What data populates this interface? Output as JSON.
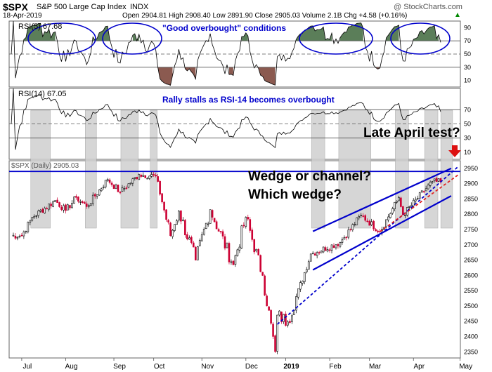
{
  "header": {
    "symbol": "$SPX",
    "name": "S&P 500 Large Cap Index",
    "exchange": "INDX",
    "date": "18-Apr-2019",
    "watermark": "@ StockCharts.com",
    "quote": "Open 2904.81  High 2908.40  Low 2891.90  Close 2905.03  Volume 2.1B  Chg +4.58 (+0.16%)",
    "up_arrow": "▲"
  },
  "chart_data": [
    {
      "type": "line",
      "panel": "RSI(5)",
      "legend": "RSI(5) 67.68",
      "annotation": "\"Good overbought\" conditions",
      "ylim": [
        0,
        100
      ],
      "y_ticks": [
        10,
        30,
        50,
        70,
        90
      ],
      "reference_lines": [
        30,
        50,
        70
      ],
      "last_value": 67.68,
      "highlighted_zones": [
        "Jul–Aug",
        "Aug–Sep",
        "Jan–Mar",
        "Apr"
      ],
      "fill_above": 70,
      "fill_below": 30
    },
    {
      "type": "line",
      "panel": "RSI(14)",
      "legend": "RSI(14) 67.05",
      "annotation": "Rally stalls as RSI-14 becomes overbought",
      "ylim": [
        0,
        100
      ],
      "y_ticks": [
        10,
        30,
        50,
        70
      ],
      "reference_lines": [
        30,
        50,
        70
      ],
      "last_value": 67.05
    },
    {
      "type": "candlestick",
      "panel": "$SPX (Daily)",
      "legend": "$SPX (Daily) 2905.03",
      "last_close": 2905.03,
      "ylim": [
        2330,
        2975
      ],
      "y_ticks": [
        2350,
        2400,
        2450,
        2500,
        2550,
        2600,
        2650,
        2700,
        2750,
        2800,
        2850,
        2900,
        2950
      ],
      "x_labels": [
        "Jul",
        "Aug",
        "Sep",
        "Oct",
        "Nov",
        "Dec",
        "2019",
        "Feb",
        "Mar",
        "Apr",
        "May"
      ],
      "anchors": [
        [
          "2018-07-02",
          2730
        ],
        [
          "2018-07-10",
          2790
        ],
        [
          "2018-07-25",
          2845
        ],
        [
          "2018-08-01",
          2812
        ],
        [
          "2018-08-08",
          2855
        ],
        [
          "2018-08-15",
          2825
        ],
        [
          "2018-08-29",
          2914
        ],
        [
          "2018-09-07",
          2872
        ],
        [
          "2018-09-20",
          2930
        ],
        [
          "2018-10-02",
          2925
        ],
        [
          "2018-10-11",
          2730
        ],
        [
          "2018-10-17",
          2810
        ],
        [
          "2018-10-29",
          2650
        ],
        [
          "2018-11-07",
          2815
        ],
        [
          "2018-11-23",
          2635
        ],
        [
          "2018-12-03",
          2790
        ],
        [
          "2018-12-14",
          2600
        ],
        [
          "2018-12-24",
          2351
        ],
        [
          "2018-12-26",
          2470
        ],
        [
          "2019-01-03",
          2448
        ],
        [
          "2019-01-18",
          2670
        ],
        [
          "2019-02-08",
          2708
        ],
        [
          "2019-02-25",
          2797
        ],
        [
          "2019-03-08",
          2743
        ],
        [
          "2019-03-21",
          2855
        ],
        [
          "2019-03-25",
          2798
        ],
        [
          "2019-04-12",
          2907
        ],
        [
          "2019-04-18",
          2905
        ]
      ],
      "horizontal_line": 2940,
      "trendlines": [
        {
          "name": "upper channel",
          "from": [
            "2019-01-21",
            2744
          ],
          "to": [
            "2019-04-25",
            2950
          ],
          "color": "#0000cc",
          "style": "solid"
        },
        {
          "name": "lower channel",
          "from": [
            "2019-01-21",
            2618
          ],
          "to": [
            "2019-04-25",
            2860
          ],
          "color": "#0000cc",
          "style": "solid"
        },
        {
          "name": "wedge low line",
          "from": [
            "2018-12-26",
            2440
          ],
          "to": [
            "2019-04-30",
            2957
          ],
          "color": "#0000cc",
          "style": "dotted"
        },
        {
          "name": "wedge low line 2",
          "from": [
            "2019-03-08",
            2743
          ],
          "to": [
            "2019-04-30",
            2930
          ],
          "color": "#e02020",
          "style": "dotted"
        }
      ],
      "shaded_bands": [
        [
          "2018-07-10",
          "2018-07-20"
        ],
        [
          "2018-08-15",
          "2018-08-21"
        ],
        [
          "2018-09-10",
          "2018-09-19"
        ],
        [
          "2018-09-28",
          "2018-10-02"
        ],
        [
          "2019-01-22",
          "2019-01-29"
        ],
        [
          "2019-02-08",
          "2019-03-01"
        ],
        [
          "2019-03-20",
          "2019-03-27"
        ],
        [
          "2019-04-09",
          "2019-04-16"
        ],
        [
          "2019-04-19",
          "2019-04-25"
        ]
      ],
      "annotations": [
        "Wedge or channel?",
        "Which wedge?",
        "Late April test?"
      ]
    }
  ],
  "colors": {
    "frame": "#666666",
    "blue_annotation": "#0000cc",
    "up_candle": "#000000",
    "down_candle": "#cc0033",
    "band_fill": "#d0d0d0",
    "overbought_fill": "#5b7e59",
    "oversold_fill": "#8b5a50",
    "arrow": "#dd1111"
  }
}
